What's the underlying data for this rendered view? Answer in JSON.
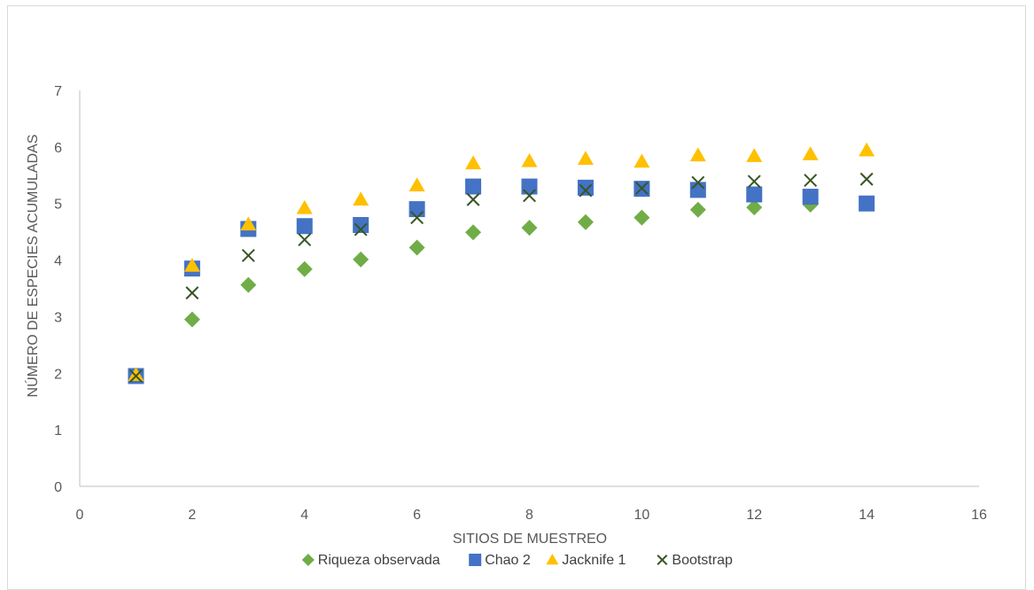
{
  "chart_data": {
    "type": "scatter",
    "title": "",
    "xlabel": "SITIOS DE MUESTREO",
    "ylabel": "NÚMERO DE ESPECIES ACUMULADAS",
    "xlim": [
      0,
      16
    ],
    "ylim": [
      0,
      7
    ],
    "xticks": [
      0,
      2,
      4,
      6,
      8,
      10,
      12,
      14,
      16
    ],
    "yticks": [
      0,
      1,
      2,
      3,
      4,
      5,
      6,
      7
    ],
    "grid": false,
    "legend_position": "bottom",
    "x": [
      1,
      2,
      3,
      4,
      5,
      6,
      7,
      8,
      9,
      10,
      11,
      12,
      13,
      14
    ],
    "series": [
      {
        "name": "Riqueza observada",
        "marker": "diamond",
        "color": "#70ad47",
        "values": [
          1.95,
          2.95,
          3.56,
          3.84,
          4.01,
          4.22,
          4.49,
          4.57,
          4.67,
          4.75,
          4.89,
          4.93,
          4.98,
          null
        ]
      },
      {
        "name": "Chao 2",
        "marker": "square",
        "color": "#4472c4",
        "values": [
          1.95,
          3.85,
          4.55,
          4.6,
          4.62,
          4.9,
          5.3,
          5.3,
          5.28,
          5.26,
          5.24,
          5.16,
          5.12,
          5.0
        ]
      },
      {
        "name": "Jacknife 1",
        "marker": "triangle",
        "color": "#ffc000",
        "values": [
          1.97,
          3.9,
          4.63,
          4.92,
          5.07,
          5.32,
          5.71,
          5.75,
          5.79,
          5.74,
          5.85,
          5.84,
          5.87,
          5.94
        ]
      },
      {
        "name": "Bootstrap",
        "marker": "x",
        "color": "#375623",
        "values": [
          1.95,
          3.42,
          4.08,
          4.36,
          4.54,
          4.75,
          5.07,
          5.14,
          5.23,
          5.27,
          5.37,
          5.39,
          5.41,
          5.43
        ]
      }
    ]
  }
}
